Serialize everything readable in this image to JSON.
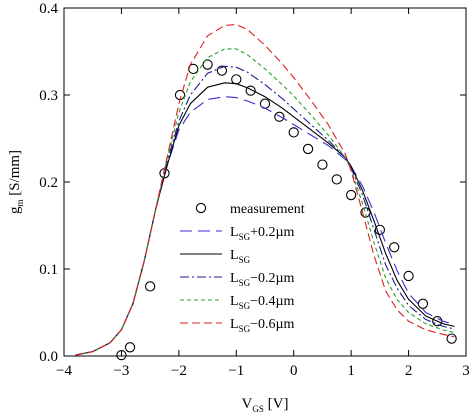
{
  "chart_data": {
    "type": "line",
    "title": "",
    "xlabel": {
      "main": "V",
      "sub": "GS",
      "rest": " [V]"
    },
    "ylabel": {
      "main": "g",
      "sub": "m",
      "rest": " [S/mm]"
    },
    "xlim": [
      -4,
      3
    ],
    "ylim": [
      0.0,
      0.4
    ],
    "xticks": [
      -4,
      -3,
      -2,
      -1,
      0,
      1,
      2,
      3
    ],
    "xtick_labels": [
      "−4",
      "−3",
      "−2",
      "−1",
      "0",
      "1",
      "2",
      "3"
    ],
    "yticks": [
      0.0,
      0.1,
      0.2,
      0.3,
      0.4
    ],
    "ytick_labels": [
      "0.0",
      "0.1",
      "0.2",
      "0.3",
      "0.4"
    ],
    "grid": false,
    "legend_position": "center-right",
    "series": [
      {
        "key": "measurement",
        "label": {
          "main": "measurement",
          "sub": "",
          "rest": ""
        },
        "style": "markers",
        "color": "#000000",
        "x": [
          -3.0,
          -2.85,
          -2.5,
          -2.25,
          -1.98,
          -1.75,
          -1.5,
          -1.25,
          -1.0,
          -0.75,
          -0.5,
          -0.25,
          0.0,
          0.25,
          0.5,
          0.75,
          1.0,
          1.25,
          1.5,
          1.75,
          2.0,
          2.25,
          2.5,
          2.75
        ],
        "y": [
          0.001,
          0.01,
          0.08,
          0.21,
          0.3,
          0.33,
          0.335,
          0.328,
          0.318,
          0.305,
          0.29,
          0.275,
          0.257,
          0.238,
          0.22,
          0.203,
          0.185,
          0.165,
          0.145,
          0.125,
          0.092,
          0.06,
          0.04,
          0.02
        ]
      },
      {
        "key": "lsg_plus_0_2",
        "label": {
          "main": "L",
          "sub": "SG",
          "rest": "+0.2µm"
        },
        "style": "long-dash",
        "color": "#3a2bd6",
        "x": [
          -3.8,
          -3.5,
          -3.2,
          -3.0,
          -2.8,
          -2.6,
          -2.4,
          -2.2,
          -2.0,
          -1.8,
          -1.5,
          -1.2,
          -1.0,
          -0.8,
          -0.5,
          -0.2,
          0.0,
          0.3,
          0.6,
          0.9,
          1.0,
          1.2,
          1.4,
          1.6,
          1.8,
          2.0,
          2.3,
          2.6,
          2.8
        ],
        "y": [
          0.001,
          0.005,
          0.015,
          0.03,
          0.06,
          0.11,
          0.17,
          0.22,
          0.26,
          0.28,
          0.295,
          0.298,
          0.297,
          0.293,
          0.285,
          0.274,
          0.266,
          0.254,
          0.242,
          0.226,
          0.218,
          0.195,
          0.165,
          0.13,
          0.098,
          0.072,
          0.05,
          0.04,
          0.036
        ]
      },
      {
        "key": "lsg",
        "label": {
          "main": "L",
          "sub": "SG",
          "rest": ""
        },
        "style": "solid",
        "color": "#000000",
        "x": [
          -3.8,
          -3.5,
          -3.2,
          -3.0,
          -2.8,
          -2.6,
          -2.4,
          -2.2,
          -2.0,
          -1.8,
          -1.5,
          -1.2,
          -1.0,
          -0.8,
          -0.5,
          -0.2,
          0.0,
          0.3,
          0.6,
          0.9,
          1.0,
          1.2,
          1.4,
          1.6,
          1.8,
          2.0,
          2.3,
          2.6,
          2.8
        ],
        "y": [
          0.001,
          0.005,
          0.015,
          0.03,
          0.06,
          0.11,
          0.17,
          0.22,
          0.265,
          0.29,
          0.309,
          0.314,
          0.313,
          0.308,
          0.298,
          0.285,
          0.275,
          0.26,
          0.245,
          0.228,
          0.218,
          0.19,
          0.155,
          0.118,
          0.087,
          0.065,
          0.046,
          0.037,
          0.034
        ]
      },
      {
        "key": "lsg_minus_0_2",
        "label": {
          "main": "L",
          "sub": "SG",
          "rest": "−0.2µm"
        },
        "style": "dash-dot",
        "color": "#1a1a8c",
        "x": [
          -3.8,
          -3.5,
          -3.2,
          -3.0,
          -2.8,
          -2.6,
          -2.4,
          -2.2,
          -2.0,
          -1.8,
          -1.5,
          -1.2,
          -1.0,
          -0.8,
          -0.5,
          -0.2,
          0.0,
          0.3,
          0.6,
          0.9,
          1.0,
          1.2,
          1.4,
          1.6,
          1.8,
          2.0,
          2.3,
          2.6,
          2.8
        ],
        "y": [
          0.001,
          0.005,
          0.015,
          0.03,
          0.06,
          0.11,
          0.17,
          0.225,
          0.27,
          0.3,
          0.325,
          0.333,
          0.332,
          0.326,
          0.312,
          0.296,
          0.284,
          0.266,
          0.248,
          0.228,
          0.216,
          0.185,
          0.145,
          0.105,
          0.078,
          0.058,
          0.042,
          0.034,
          0.031
        ]
      },
      {
        "key": "lsg_minus_0_4",
        "label": {
          "main": "L",
          "sub": "SG",
          "rest": "−0.4µm"
        },
        "style": "short-dash",
        "color": "#2aa02a",
        "x": [
          -3.8,
          -3.5,
          -3.2,
          -3.0,
          -2.8,
          -2.6,
          -2.4,
          -2.2,
          -2.0,
          -1.8,
          -1.5,
          -1.2,
          -1.0,
          -0.8,
          -0.5,
          -0.2,
          0.0,
          0.3,
          0.6,
          0.9,
          1.0,
          1.2,
          1.4,
          1.6,
          1.8,
          2.0,
          2.3,
          2.6,
          2.8
        ],
        "y": [
          0.001,
          0.005,
          0.015,
          0.03,
          0.06,
          0.11,
          0.17,
          0.228,
          0.28,
          0.315,
          0.343,
          0.353,
          0.353,
          0.346,
          0.33,
          0.312,
          0.299,
          0.277,
          0.254,
          0.228,
          0.214,
          0.175,
          0.13,
          0.09,
          0.065,
          0.05,
          0.037,
          0.03,
          0.027
        ]
      },
      {
        "key": "lsg_minus_0_6",
        "label": {
          "main": "L",
          "sub": "SG",
          "rest": "−0.6µm"
        },
        "style": "medium-dash",
        "color": "#e02020",
        "x": [
          -3.8,
          -3.5,
          -3.2,
          -3.0,
          -2.8,
          -2.6,
          -2.4,
          -2.2,
          -2.0,
          -1.8,
          -1.5,
          -1.2,
          -1.0,
          -0.8,
          -0.5,
          -0.2,
          0.0,
          0.3,
          0.6,
          0.9,
          1.0,
          1.2,
          1.4,
          1.6,
          1.8,
          2.0,
          2.3,
          2.6,
          2.8
        ],
        "y": [
          0.001,
          0.005,
          0.015,
          0.03,
          0.06,
          0.11,
          0.17,
          0.23,
          0.29,
          0.335,
          0.368,
          0.38,
          0.381,
          0.375,
          0.357,
          0.336,
          0.32,
          0.294,
          0.266,
          0.232,
          0.213,
          0.165,
          0.115,
          0.075,
          0.053,
          0.04,
          0.03,
          0.025,
          0.022
        ]
      }
    ]
  }
}
